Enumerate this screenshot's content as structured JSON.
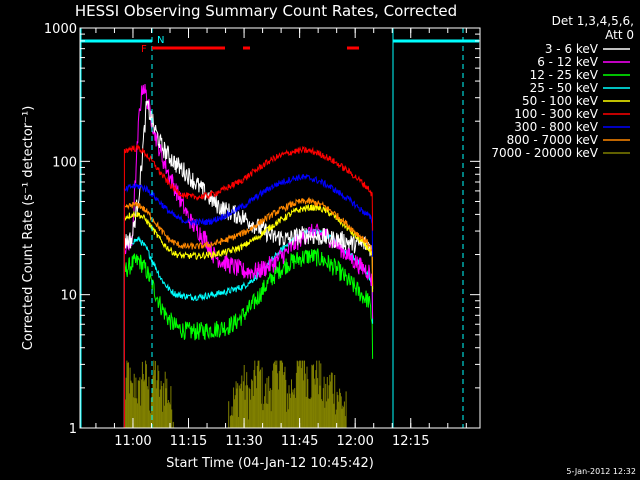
{
  "chart_data": {
    "type": "line",
    "title": "HESSI Observing Summary Count Rates, Corrected",
    "xlabel": "Start Time (04-Jan-12 10:45:42)",
    "ylabel": "Corrected Count Rate (s⁻¹ detector⁻¹)",
    "y_scale": "log",
    "ylim": [
      1,
      1000
    ],
    "y_ticks": [
      {
        "value": 1,
        "label": "1"
      },
      {
        "value": 10,
        "label": "10"
      },
      {
        "value": 100,
        "label": "100"
      },
      {
        "value": 1000,
        "label": "1000"
      }
    ],
    "xlim_minutes": [
      0,
      108
    ],
    "x_ticks": [
      {
        "minute": 14.3,
        "label": "11:00"
      },
      {
        "minute": 29.3,
        "label": "11:15"
      },
      {
        "minute": 44.3,
        "label": "11:30"
      },
      {
        "minute": 59.3,
        "label": "11:45"
      },
      {
        "minute": 74.3,
        "label": "12:00"
      },
      {
        "minute": 89.3,
        "label": "12:15"
      }
    ],
    "legend_header": [
      "Det 1,3,4,5,6,",
      "Att 0"
    ],
    "legend_placement": "right",
    "series": [
      {
        "name": "3 - 6 keV",
        "color": "#ffffff",
        "x": [
          12,
          14,
          16,
          18,
          20,
          22,
          24,
          26,
          28,
          30,
          32,
          34,
          36,
          38,
          40,
          42,
          44,
          46,
          48,
          50,
          52,
          54,
          56,
          58,
          60,
          62,
          64,
          66,
          68,
          70,
          72,
          74,
          76,
          78,
          79
        ],
        "y": [
          25,
          26,
          60,
          270,
          180,
          130,
          110,
          95,
          85,
          75,
          65,
          57,
          50,
          45,
          42,
          40,
          38,
          35,
          32,
          30,
          27,
          27,
          26,
          27,
          28,
          28,
          27,
          27,
          26,
          26,
          25,
          24,
          24,
          24,
          20
        ]
      },
      {
        "name": "6 - 12 keV",
        "color": "#ff00ff",
        "x": [
          12,
          14,
          16,
          17,
          18,
          20,
          22,
          24,
          26,
          28,
          30,
          32,
          34,
          36,
          38,
          40,
          42,
          44,
          46,
          48,
          50,
          52,
          54,
          56,
          58,
          60,
          62,
          64,
          66,
          68,
          70,
          72,
          74,
          76,
          78,
          79
        ],
        "y": [
          22,
          24,
          230,
          380,
          300,
          170,
          110,
          80,
          60,
          45,
          35,
          30,
          26,
          20,
          18,
          17,
          16,
          15,
          15,
          15,
          16,
          17,
          19,
          21,
          24,
          27,
          29,
          29,
          28,
          26,
          23,
          20,
          18,
          16,
          15,
          12
        ]
      },
      {
        "name": "12 - 25 keV",
        "color": "#00ff00",
        "x": [
          12,
          14,
          16,
          18,
          20,
          22,
          24,
          26,
          28,
          30,
          32,
          34,
          36,
          38,
          40,
          42,
          44,
          46,
          48,
          50,
          52,
          54,
          56,
          58,
          60,
          62,
          64,
          66,
          68,
          70,
          72,
          74,
          76,
          78,
          79
        ],
        "y": [
          15,
          17,
          18,
          15,
          11,
          8,
          6.5,
          5.7,
          5.4,
          5.3,
          5.3,
          5.4,
          5.5,
          5.6,
          5.8,
          6.2,
          7,
          8,
          9.5,
          11.5,
          13.5,
          15.5,
          17,
          18,
          19,
          19.5,
          19,
          18,
          16.5,
          15,
          13,
          11.5,
          10,
          9,
          6
        ]
      },
      {
        "name": "25 - 50 keV",
        "color": "#00ffff",
        "x": [
          12,
          14,
          16,
          18,
          20,
          22,
          24,
          26,
          28,
          30,
          32,
          34,
          36,
          38,
          40,
          42,
          44,
          46,
          48,
          50,
          52,
          54,
          56,
          58,
          60,
          62,
          64,
          66,
          68,
          70,
          72,
          74,
          76,
          78,
          79
        ],
        "y": [
          23,
          25,
          26,
          22,
          17,
          13,
          11,
          10,
          9.8,
          9.6,
          9.6,
          9.8,
          10,
          10.3,
          10.6,
          11,
          11.5,
          12.5,
          14,
          16,
          18.5,
          21,
          24,
          26.5,
          28.5,
          29.5,
          29.5,
          28.5,
          26.5,
          24,
          21,
          19,
          16,
          14,
          11
        ]
      },
      {
        "name": "50 - 100 keV",
        "color": "#ffff00",
        "x": [
          12,
          14,
          16,
          18,
          20,
          22,
          24,
          26,
          28,
          30,
          32,
          34,
          36,
          38,
          40,
          42,
          44,
          46,
          48,
          50,
          52,
          54,
          56,
          58,
          60,
          62,
          64,
          66,
          68,
          70,
          72,
          74,
          76,
          78,
          79
        ],
        "y": [
          38,
          40,
          40,
          36,
          30,
          25,
          22,
          20,
          19.5,
          19.5,
          19.5,
          19.8,
          20,
          20.5,
          21,
          22,
          23,
          25,
          27,
          30,
          33,
          36,
          39,
          42,
          44,
          45,
          45,
          43,
          40,
          36,
          32,
          28,
          25,
          22,
          19
        ]
      },
      {
        "name": "100 - 300 keV",
        "color": "#ff0000",
        "x": [
          12,
          14,
          16,
          18,
          20,
          22,
          24,
          26,
          28,
          30,
          32,
          34,
          36,
          38,
          40,
          42,
          44,
          46,
          48,
          50,
          52,
          54,
          56,
          58,
          60,
          62,
          64,
          66,
          68,
          70,
          72,
          74,
          76,
          78,
          79
        ],
        "y": [
          120,
          125,
          125,
          112,
          96,
          80,
          68,
          60,
          56,
          54,
          54,
          55,
          57,
          60,
          64,
          68,
          73,
          80,
          88,
          96,
          104,
          110,
          115,
          119,
          121,
          120,
          116,
          110,
          102,
          94,
          86,
          78,
          70,
          62,
          55
        ]
      },
      {
        "name": "300 - 800 keV",
        "color": "#0000ff",
        "x": [
          12,
          14,
          16,
          18,
          20,
          22,
          24,
          26,
          28,
          30,
          32,
          34,
          36,
          38,
          40,
          42,
          44,
          46,
          48,
          50,
          52,
          54,
          56,
          58,
          60,
          62,
          64,
          66,
          68,
          70,
          72,
          74,
          76,
          78,
          79
        ],
        "y": [
          60,
          65,
          65,
          62,
          55,
          48,
          42,
          38,
          36,
          35,
          35,
          35,
          36,
          38,
          40,
          43,
          46,
          50,
          55,
          60,
          65,
          69,
          72,
          75,
          76,
          75,
          72,
          68,
          63,
          58,
          53,
          48,
          43,
          39,
          35
        ]
      },
      {
        "name": "800 - 7000 keV",
        "color": "#ff8800",
        "x": [
          12,
          14,
          16,
          18,
          20,
          22,
          24,
          26,
          28,
          30,
          32,
          34,
          36,
          38,
          40,
          42,
          44,
          46,
          48,
          50,
          52,
          54,
          56,
          58,
          60,
          62,
          64,
          66,
          68,
          70,
          72,
          74,
          76,
          78,
          79
        ],
        "y": [
          44,
          47,
          47,
          42,
          36,
          30,
          26,
          24,
          23,
          23,
          23,
          23.5,
          24,
          25,
          26,
          27.5,
          29,
          31,
          34,
          37,
          40,
          43,
          46,
          48.5,
          50,
          50,
          48.5,
          46,
          42,
          38,
          34,
          30,
          27,
          24,
          21
        ]
      },
      {
        "name": "7000 - 20000 keV",
        "color": "#808000",
        "x": [
          12,
          13,
          14,
          15,
          16,
          17,
          18,
          19,
          20,
          21,
          22,
          23,
          24,
          25,
          40,
          42,
          44,
          46,
          48,
          50,
          52,
          54,
          56,
          58,
          60,
          62,
          64,
          66,
          68,
          70,
          72
        ],
        "y": [
          1.5,
          2.5,
          1.5,
          2,
          1.5,
          2.5,
          2,
          1.5,
          2.5,
          2,
          1.5,
          2,
          1.5,
          1.2,
          1.2,
          1.5,
          2,
          1.5,
          2.5,
          1.5,
          2,
          3,
          1.5,
          2,
          3,
          2,
          2.5,
          1.5,
          2,
          1.5,
          1.2
        ]
      }
    ],
    "flags": {
      "labels": [
        "F",
        "N"
      ],
      "saa_bar_color": "#00ffff",
      "flare_bar_color": "#ff0000"
    }
  },
  "footer": {
    "timestamp": "5-Jan-2012 12:32"
  }
}
